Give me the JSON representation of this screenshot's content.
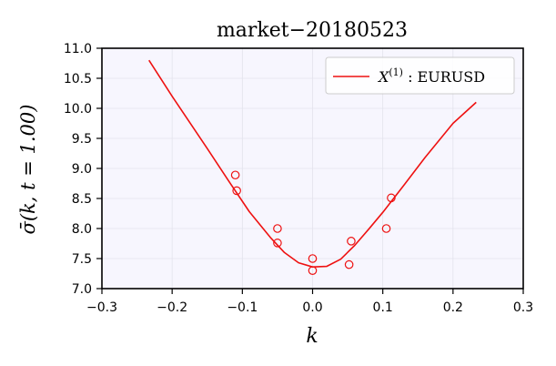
{
  "chart_data": {
    "type": "scatter",
    "title": "market−20180523",
    "xlabel": "k",
    "ylabel": "σ̄(k, t = 1.00)",
    "xlim": [
      -0.3,
      0.3
    ],
    "ylim": [
      7.0,
      11.0
    ],
    "x_ticks": [
      -0.3,
      -0.2,
      -0.1,
      0.0,
      0.1,
      0.2,
      0.3
    ],
    "x_tick_labels": [
      "−0.3",
      "−0.2",
      "−0.1",
      "0.0",
      "0.1",
      "0.2",
      "0.3"
    ],
    "y_ticks": [
      7.0,
      7.5,
      8.0,
      8.5,
      9.0,
      9.5,
      10.0,
      10.5,
      11.0
    ],
    "y_tick_labels": [
      "7.0",
      "7.5",
      "8.0",
      "8.5",
      "9.0",
      "9.5",
      "10.0",
      "10.5",
      "11.0"
    ],
    "grid": true,
    "legend_position": "top-right",
    "series": [
      {
        "name": "X(1) : EURUSD",
        "legend_main": "X",
        "legend_sup": "(1)",
        "legend_rest": " : EURUSD",
        "color": "#ee1111",
        "kind": "line",
        "x": [
          -0.233,
          -0.2,
          -0.15,
          -0.12,
          -0.09,
          -0.06,
          -0.04,
          -0.02,
          0.0,
          0.02,
          0.04,
          0.06,
          0.08,
          0.1,
          0.13,
          0.16,
          0.2,
          0.233
        ],
        "y": [
          10.8,
          10.2,
          9.33,
          8.8,
          8.28,
          7.85,
          7.6,
          7.43,
          7.36,
          7.37,
          7.49,
          7.72,
          7.99,
          8.27,
          8.72,
          9.18,
          9.75,
          10.1
        ]
      },
      {
        "name": "",
        "color": "#ee1111",
        "kind": "points",
        "x": [
          -0.11,
          -0.108,
          -0.05,
          -0.05,
          0.0,
          0.0,
          0.052,
          0.055,
          0.105,
          0.112
        ],
        "y": [
          8.89,
          8.63,
          8.0,
          7.76,
          7.5,
          7.3,
          7.4,
          7.79,
          8.0,
          8.51
        ]
      }
    ]
  }
}
